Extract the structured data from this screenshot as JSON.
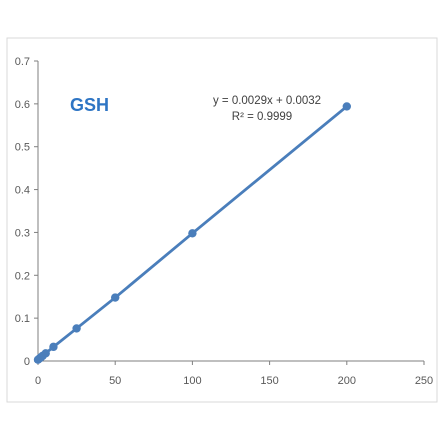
{
  "chart_data": {
    "type": "scatter",
    "title": "GSH",
    "xlabel": "",
    "ylabel": "",
    "xlim": [
      0,
      250
    ],
    "ylim": [
      0,
      0.7
    ],
    "xticks": [
      "0",
      "50",
      "100",
      "150",
      "200",
      "250"
    ],
    "yticks": [
      "0",
      "0.1",
      "0.2",
      "0.3",
      "0.4",
      "0.5",
      "0.6",
      "0.7"
    ],
    "grid": false,
    "series": [
      {
        "x": [
          0,
          1,
          2,
          3,
          5,
          10,
          25,
          50,
          100,
          200
        ],
        "y": [
          0.003,
          0.006,
          0.009,
          0.012,
          0.018,
          0.033,
          0.076,
          0.148,
          0.298,
          0.594
        ],
        "color": "#4a7ebb"
      }
    ],
    "trendline": {
      "equation": "y = 0.0029x + 0.0032",
      "r2": "R² = 0.9999",
      "slope": 0.0029,
      "intercept": 0.0032
    },
    "title_color": "#2e75c4",
    "series_color": "#4a7ebb",
    "axis_color": "#7f7f7f",
    "border_color": "#d9d9d9"
  }
}
